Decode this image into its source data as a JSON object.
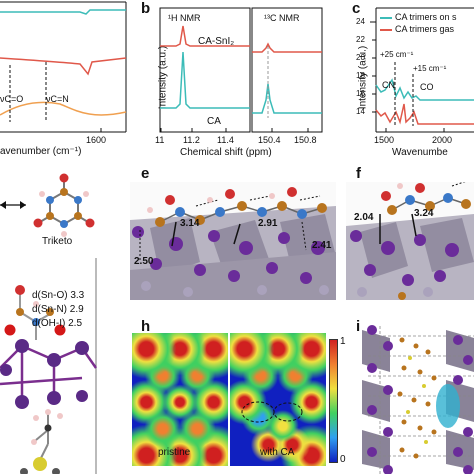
{
  "panel_letters": {
    "b": "b",
    "c": "c",
    "e": "e",
    "f": "f",
    "h": "h",
    "i": "i"
  },
  "panel_a": {
    "xlabel": "avenumber (cm⁻¹)",
    "xtick": "1600",
    "ann1": "νC=O",
    "ann2": "νC=N"
  },
  "panel_b": {
    "ylabel": "Intensity (a.u.)",
    "xlabel": "Chemical shift (ppm)",
    "h_title": "¹H  NMR",
    "c_title": "¹³C  NMR",
    "series_top": "CA-SnI₂",
    "series_bottom": "CA",
    "h_ticks": [
      "11",
      "11.2",
      "11.4"
    ],
    "c_ticks": [
      "150.4",
      "150.8"
    ]
  },
  "panel_c": {
    "ylabel": "Intensity (a.u.)",
    "xlabel": "Wavenumbe",
    "legend": [
      "CA trimers on s",
      "CA trimers gas"
    ],
    "colors": [
      "#3cbcb8",
      "#e0584a"
    ],
    "yticks": [
      "14",
      "16",
      "18",
      "20",
      "22",
      "24"
    ],
    "xticks": [
      "1500",
      "2000"
    ],
    "ann_cn": "CN",
    "ann_co": "CO",
    "ann_25": "+25 cm⁻¹",
    "ann_15": "+15 cm⁻¹"
  },
  "panel_d": {
    "triketo": "Triketo",
    "d1": "d(Sn-O) 3.3",
    "d2": "d(Sn-N) 2.9",
    "d3": "d(OH-I) 2.5"
  },
  "panel_e": {
    "dists": [
      "3.14",
      "2.91",
      "2.41",
      "2.50"
    ]
  },
  "panel_f": {
    "dists": [
      "2.04",
      "3.24"
    ]
  },
  "panel_h": {
    "left": "pristine",
    "right": "with CA",
    "cbar_max": "1",
    "cbar_min": "0"
  }
}
